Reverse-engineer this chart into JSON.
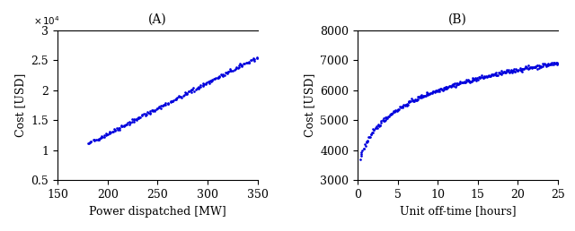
{
  "panel_A": {
    "title": "(A)",
    "xlabel": "Power dispatched [MW]",
    "ylabel": "Cost [USD]",
    "x_min": 150,
    "x_max": 350,
    "y_min": 5000,
    "y_max": 30000,
    "yticks": [
      5000,
      10000,
      15000,
      20000,
      25000,
      30000
    ],
    "ytick_labels": [
      "0.5",
      "1",
      "1.5",
      "2",
      "2.5",
      "3"
    ],
    "xticks": [
      150,
      200,
      250,
      300,
      350
    ],
    "dot_color": "#0000dd",
    "dot_size": 1.8,
    "a_coef": 0.0,
    "b_coef": 85.0,
    "c_coef": 8500.0,
    "x_start": 180
  },
  "panel_B": {
    "title": "(B)",
    "xlabel": "Unit off-time [hours]",
    "ylabel": "Cost [USD]",
    "x_min": 0,
    "x_max": 25,
    "y_min": 3000,
    "y_max": 8000,
    "yticks": [
      3000,
      4000,
      5000,
      6000,
      7000,
      8000
    ],
    "xticks": [
      0,
      5,
      10,
      15,
      20,
      25
    ],
    "dot_color": "#0000dd",
    "dot_size": 1.8,
    "log_a": 1050,
    "log_b": 3480,
    "x_start": 0.3
  }
}
